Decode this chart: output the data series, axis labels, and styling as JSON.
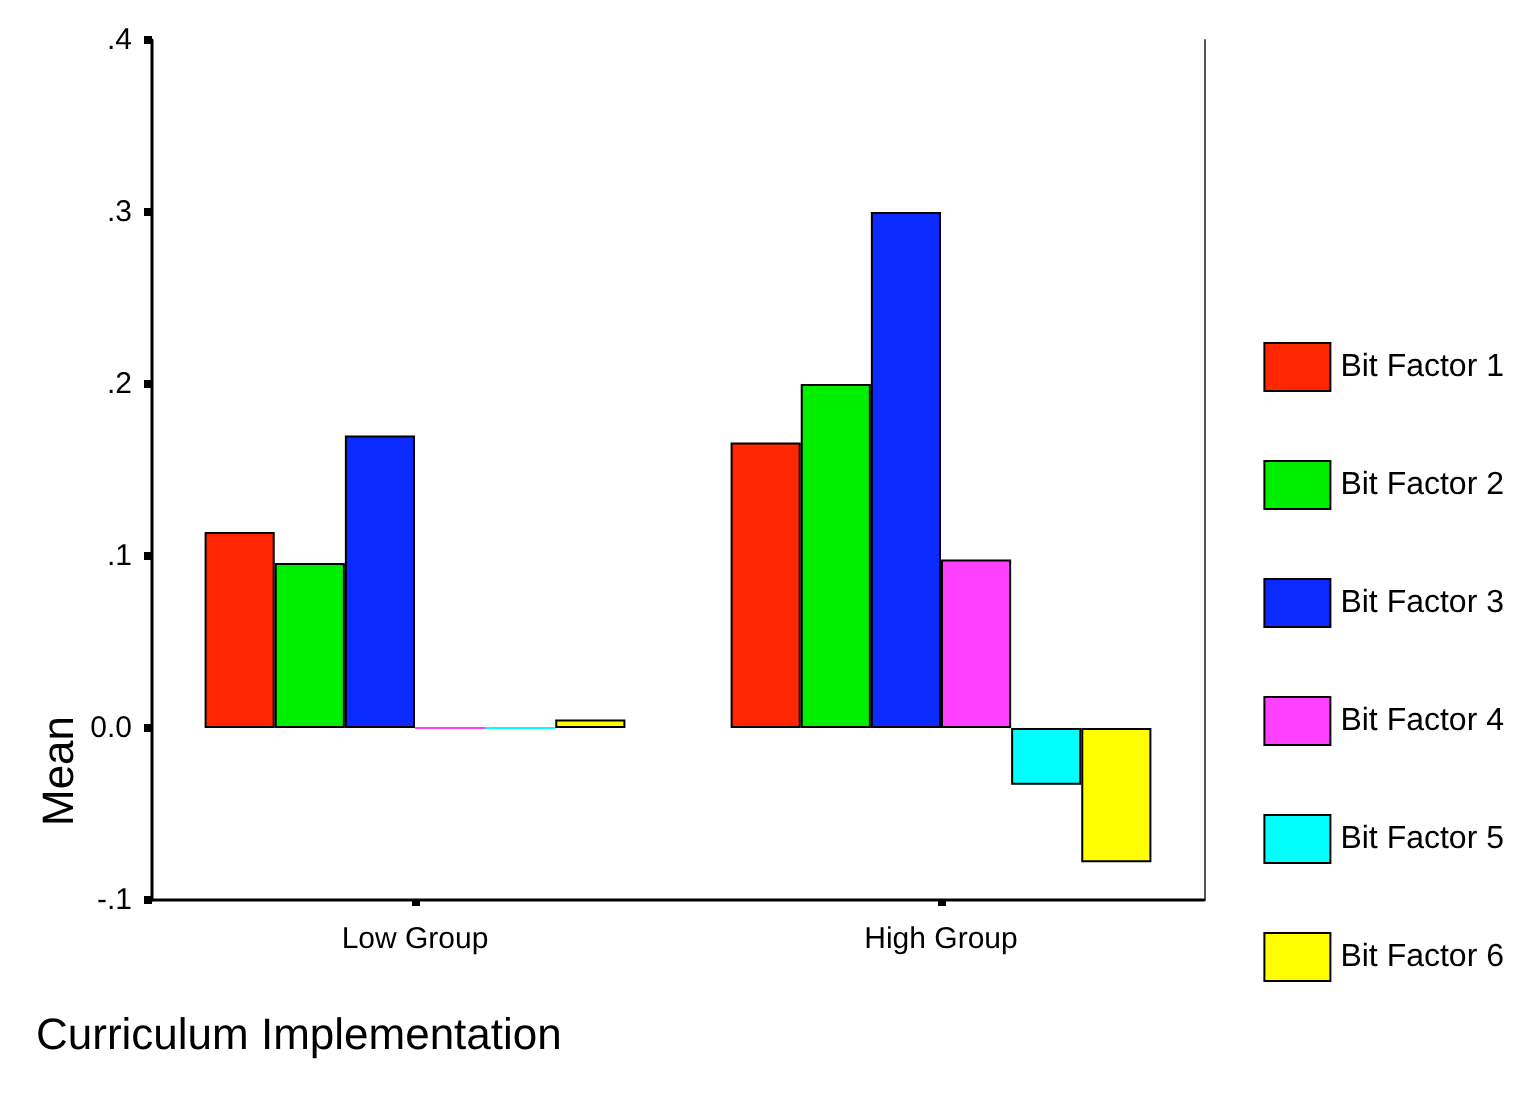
{
  "chart_data": {
    "type": "bar",
    "xlabel": "Curriculum Implementation",
    "ylabel": "Mean",
    "categories": [
      "Low Group",
      "High Group"
    ],
    "series": [
      {
        "name": "Bit Factor 1",
        "color": "#ff2600",
        "values": [
          0.114,
          0.166
        ]
      },
      {
        "name": "Bit Factor 2",
        "color": "#00ee00",
        "values": [
          0.096,
          0.2
        ]
      },
      {
        "name": "Bit Factor 3",
        "color": "#0a2aff",
        "values": [
          0.17,
          0.3
        ]
      },
      {
        "name": "Bit Factor 4",
        "color": "#ff40ff",
        "values": [
          0,
          0.098
        ]
      },
      {
        "name": "Bit Factor 5",
        "color": "#00ffff",
        "values": [
          0,
          -0.033
        ]
      },
      {
        "name": "Bit Factor 6",
        "color": "#ffff00",
        "values": [
          0.005,
          -0.078
        ]
      }
    ],
    "ylim": [
      -0.1,
      0.4
    ],
    "yticks": [
      {
        "value": -0.1,
        "label": "-.1"
      },
      {
        "value": 0,
        "label": "0.0"
      },
      {
        "value": 0.1,
        "label": ".1"
      },
      {
        "value": 0.2,
        "label": ".2"
      },
      {
        "value": 0.3,
        "label": ".3"
      },
      {
        "value": 0.4,
        "label": ".4"
      }
    ],
    "grid": false,
    "legend": "right"
  }
}
